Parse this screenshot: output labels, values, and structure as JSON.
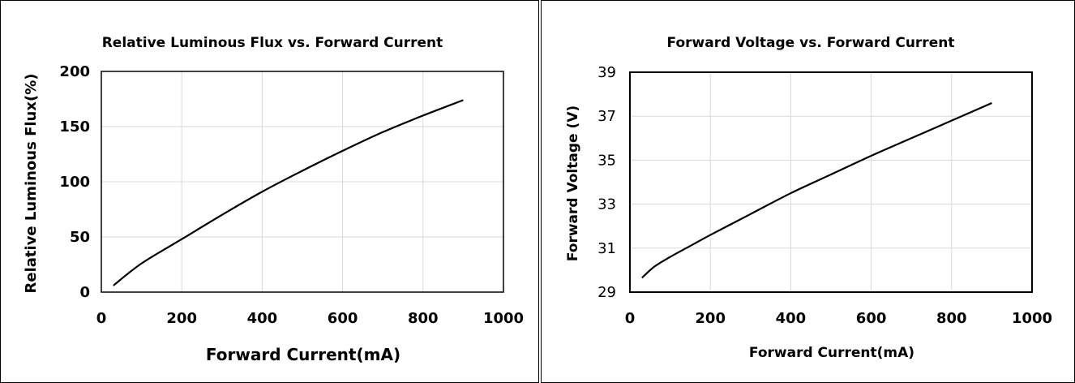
{
  "chart_data": [
    {
      "type": "line",
      "title": "Relative Luminous Flux vs. Forward Current",
      "xlabel": "Forward Current(mA)",
      "ylabel": "Relative Luminous Flux(%)",
      "xlim": [
        0,
        1000
      ],
      "ylim": [
        0,
        200
      ],
      "xticks": [
        0,
        200,
        400,
        600,
        800,
        1000
      ],
      "yticks": [
        0,
        50,
        100,
        150,
        200
      ],
      "xtick_labels": [
        "0",
        "200",
        "400",
        "600",
        "800",
        "1000"
      ],
      "ytick_labels": [
        "0",
        "50",
        "100",
        "150",
        "200"
      ],
      "grid": true,
      "series": [
        {
          "x": [
            30,
            100,
            200,
            300,
            400,
            500,
            600,
            700,
            800,
            900
          ],
          "y": [
            6,
            26,
            48,
            70,
            91,
            110,
            128,
            145,
            160,
            174
          ]
        }
      ]
    },
    {
      "type": "line",
      "title": "Forward Voltage vs. Forward Current",
      "xlabel": "Forward Current(mA)",
      "ylabel": "Forward Voltage (V)",
      "xlim": [
        0,
        1000
      ],
      "ylim": [
        29,
        39
      ],
      "xticks": [
        0,
        200,
        400,
        600,
        800,
        1000
      ],
      "yticks": [
        29,
        31,
        33,
        35,
        37,
        39
      ],
      "xtick_labels": [
        "0",
        "200",
        "400",
        "600",
        "800",
        "1000"
      ],
      "ytick_labels": [
        "29",
        "31",
        "33",
        "35",
        "37",
        "39"
      ],
      "grid": true,
      "series": [
        {
          "x": [
            30,
            60,
            100,
            150,
            200,
            300,
            400,
            500,
            600,
            700,
            800,
            900
          ],
          "y": [
            29.65,
            30.15,
            30.6,
            31.1,
            31.6,
            32.55,
            33.5,
            34.35,
            35.2,
            36.0,
            36.8,
            37.6
          ]
        }
      ]
    }
  ]
}
